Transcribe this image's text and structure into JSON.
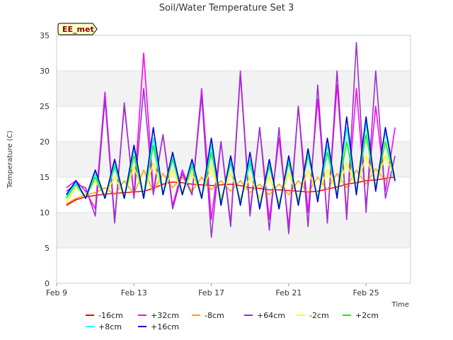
{
  "chart_data": {
    "type": "line",
    "title": "Soil/Water Temperature Set 3",
    "xlabel": "Time",
    "ylabel": "Temperature (C)",
    "badge": "EE_met",
    "xlim": [
      0,
      18.3
    ],
    "ylim": [
      0,
      35
    ],
    "x_ticks": [
      {
        "label": "Feb 9",
        "value": 0
      },
      {
        "label": "Feb 13",
        "value": 4
      },
      {
        "label": "Feb 17",
        "value": 8
      },
      {
        "label": "Feb 21",
        "value": 12
      },
      {
        "label": "Feb 25",
        "value": 16
      }
    ],
    "y_ticks": [
      0,
      5,
      10,
      15,
      20,
      25,
      30,
      35
    ],
    "grid": true,
    "legend_position": "bottom",
    "x": [
      0.5,
      1,
      1.5,
      2,
      2.5,
      3,
      3.5,
      4,
      4.5,
      5,
      5.5,
      6,
      6.5,
      7,
      7.5,
      8,
      8.5,
      9,
      9.5,
      10,
      10.5,
      11,
      11.5,
      12,
      12.5,
      13,
      13.5,
      14,
      14.5,
      15,
      15.5,
      16,
      16.5,
      17,
      17.5
    ],
    "series": [
      {
        "name": "-16cm",
        "color": "#ff0000",
        "values": [
          11.0,
          11.8,
          12.2,
          12.4,
          12.6,
          12.7,
          12.8,
          12.9,
          13.0,
          13.4,
          14.0,
          14.3,
          14.2,
          14.0,
          13.9,
          13.8,
          13.9,
          14.0,
          13.8,
          13.5,
          13.4,
          13.2,
          13.2,
          13.1,
          13.0,
          12.9,
          13.0,
          13.3,
          13.6,
          14.0,
          14.2,
          14.5,
          14.6,
          14.8,
          15.0
        ]
      },
      {
        "name": "+32cm",
        "color": "#ff00ff",
        "values": [
          13.5,
          14.5,
          13.0,
          10.5,
          27.0,
          9.0,
          25.0,
          12.5,
          32.5,
          13.0,
          21.0,
          11.0,
          16.0,
          12.5,
          27.5,
          9.0,
          20.0,
          8.5,
          30.0,
          10.0,
          22.0,
          9.0,
          20.5,
          8.0,
          25.0,
          10.0,
          26.0,
          9.0,
          28.0,
          10.0,
          27.5,
          11.0,
          25.0,
          13.0,
          22.0
        ]
      },
      {
        "name": "-8cm",
        "color": "#ffa500",
        "values": [
          11.2,
          12.0,
          12.5,
          12.8,
          13.5,
          12.5,
          14.5,
          12.6,
          16.0,
          13.0,
          15.5,
          13.5,
          15.0,
          13.0,
          15.0,
          13.2,
          14.5,
          13.0,
          14.5,
          12.8,
          14.0,
          12.5,
          14.0,
          12.5,
          14.5,
          12.8,
          15.0,
          13.2,
          15.5,
          13.5,
          16.0,
          14.0,
          16.2,
          14.5,
          15.5
        ]
      },
      {
        "name": "+64cm",
        "color": "#9932cc",
        "values": [
          13.0,
          14.0,
          13.5,
          9.5,
          26.0,
          8.5,
          25.5,
          12.0,
          27.5,
          12.5,
          21.0,
          10.5,
          15.5,
          12.5,
          26.5,
          6.5,
          20.0,
          8.0,
          29.5,
          9.5,
          22.0,
          7.5,
          22.0,
          7.0,
          25.0,
          8.0,
          28.0,
          8.5,
          30.0,
          9.0,
          34.0,
          10.0,
          30.0,
          12.0,
          18.0
        ]
      },
      {
        "name": "-2cm",
        "color": "#ffff00",
        "values": [
          11.5,
          13.5,
          12.5,
          14.5,
          12.3,
          15.0,
          12.4,
          16.5,
          12.5,
          17.0,
          12.8,
          16.0,
          13.0,
          15.5,
          12.5,
          16.5,
          12.2,
          15.5,
          12.0,
          15.0,
          12.0,
          15.0,
          11.5,
          15.5,
          12.0,
          16.0,
          12.5,
          16.0,
          13.0,
          17.0,
          13.5,
          18.0,
          14.0,
          18.0,
          15.0
        ]
      },
      {
        "name": "+2cm",
        "color": "#00ff00",
        "values": [
          12.0,
          14.0,
          12.0,
          15.0,
          12.0,
          16.5,
          12.0,
          18.0,
          12.0,
          19.5,
          12.5,
          17.5,
          12.5,
          16.5,
          12.0,
          18.5,
          11.5,
          17.0,
          11.5,
          17.0,
          11.0,
          16.5,
          11.0,
          17.0,
          11.5,
          18.0,
          12.0,
          18.5,
          12.5,
          20.0,
          13.0,
          21.0,
          13.5,
          20.0,
          14.5
        ]
      },
      {
        "name": "+8cm",
        "color": "#00ffff",
        "values": [
          12.2,
          14.2,
          12.0,
          15.5,
          12.0,
          17.0,
          12.0,
          19.0,
          12.0,
          20.5,
          12.5,
          18.0,
          12.5,
          17.0,
          12.0,
          19.5,
          11.3,
          17.5,
          11.2,
          17.5,
          10.8,
          17.0,
          10.8,
          17.5,
          11.2,
          18.5,
          11.8,
          19.5,
          12.3,
          22.0,
          12.8,
          22.5,
          13.3,
          21.5,
          14.3
        ]
      },
      {
        "name": "+16cm",
        "color": "#0000cd",
        "values": [
          12.5,
          14.5,
          12.0,
          16.0,
          12.0,
          17.5,
          12.0,
          19.5,
          12.0,
          22.0,
          12.5,
          18.5,
          12.5,
          17.5,
          12.0,
          20.5,
          11.0,
          18.0,
          11.0,
          18.5,
          10.5,
          17.5,
          10.5,
          18.0,
          11.0,
          19.0,
          11.5,
          20.5,
          12.0,
          23.5,
          12.5,
          23.5,
          13.0,
          22.0,
          14.5
        ]
      }
    ]
  }
}
